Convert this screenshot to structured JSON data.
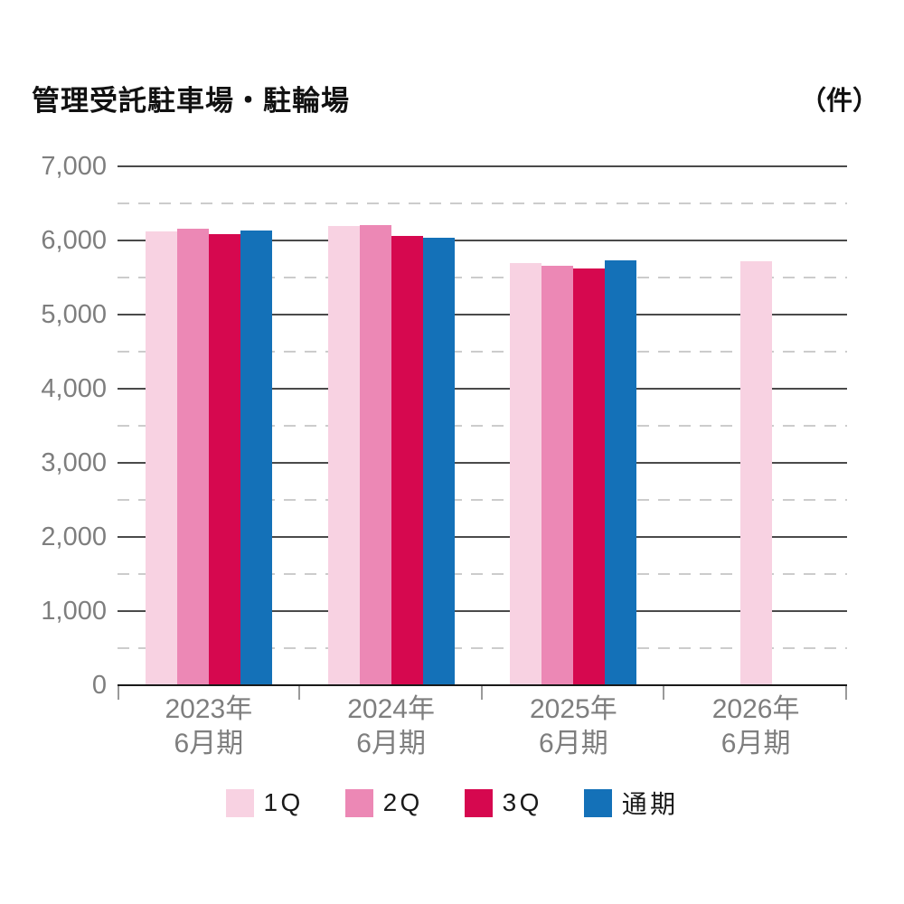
{
  "header": {
    "title": "管理受託駐車場・駐輪場",
    "unit_label": "（件）"
  },
  "chart_data": {
    "type": "bar",
    "title": "管理受託駐車場・駐輪場",
    "unit_label": "（件）",
    "categories": [
      "2023年6月期",
      "2024年6月期",
      "2025年6月期",
      "2026年6月期"
    ],
    "category_label_lines": [
      [
        "2023年",
        "6月期"
      ],
      [
        "2024年",
        "6月期"
      ],
      [
        "2025年",
        "6月期"
      ],
      [
        "2026年",
        "6月期"
      ]
    ],
    "series": [
      {
        "name": "1Q",
        "color": "#f8d2e2",
        "values": [
          6120,
          6200,
          5700,
          5720
        ]
      },
      {
        "name": "2Q",
        "color": "#ec88b5",
        "values": [
          6160,
          6210,
          5660,
          null
        ]
      },
      {
        "name": "3Q",
        "color": "#d6084f",
        "values": [
          6090,
          6060,
          5620,
          null
        ]
      },
      {
        "name": "通期",
        "color": "#1471b8",
        "values": [
          6140,
          6040,
          5730,
          null
        ]
      }
    ],
    "ylim": [
      0,
      7000
    ],
    "ytick_interval": 1000,
    "ytick_labels": [
      "0",
      "1,000",
      "2,000",
      "3,000",
      "4,000",
      "5,000",
      "6,000",
      "7,000"
    ],
    "minor_tick_interval": 500,
    "minor_grid_style": "dashed",
    "grid": true,
    "legend_position": "bottom",
    "xlabel": "",
    "ylabel": ""
  }
}
